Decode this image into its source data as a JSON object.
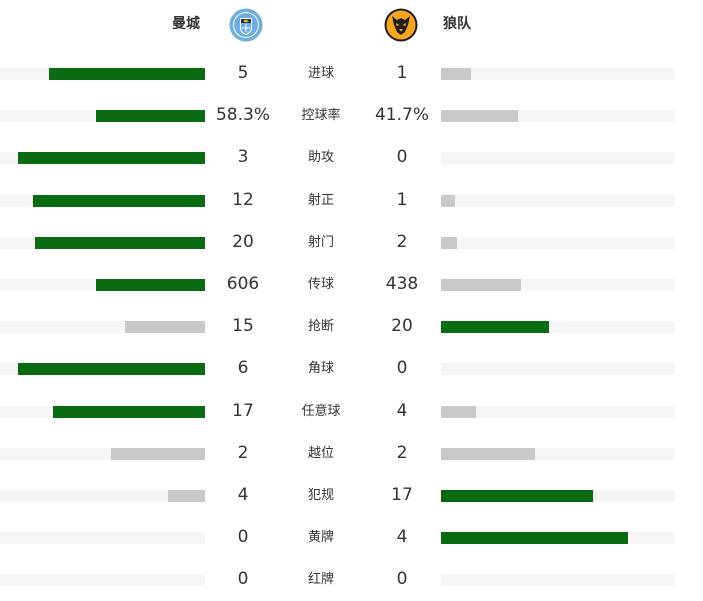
{
  "home_team": {
    "name": "曼城",
    "logo": "manchester-city-crest",
    "color": "#6caee0"
  },
  "away_team": {
    "name": "狼队",
    "logo": "wolves-crest",
    "color": "#f5a623"
  },
  "colors": {
    "leader": "#0b6b13",
    "trailer": "#c8c8c8",
    "track": "#f5f5f5"
  },
  "stats": [
    {
      "label": "进球",
      "home": "5",
      "away": "1",
      "home_share": 0.76,
      "away_share": 0.13,
      "leader": "home"
    },
    {
      "label": "控球率",
      "home": "58.3%",
      "away": "41.7%",
      "home_share": 0.53,
      "away_share": 0.33,
      "leader": "home"
    },
    {
      "label": "助攻",
      "home": "3",
      "away": "0",
      "home_share": 0.91,
      "away_share": 0.0,
      "leader": "home"
    },
    {
      "label": "射正",
      "home": "12",
      "away": "1",
      "home_share": 0.84,
      "away_share": 0.06,
      "leader": "home"
    },
    {
      "label": "射门",
      "home": "20",
      "away": "2",
      "home_share": 0.83,
      "away_share": 0.07,
      "leader": "home"
    },
    {
      "label": "传球",
      "home": "606",
      "away": "438",
      "home_share": 0.53,
      "away_share": 0.34,
      "leader": "home"
    },
    {
      "label": "抢断",
      "home": "15",
      "away": "20",
      "home_share": 0.39,
      "away_share": 0.46,
      "leader": "away"
    },
    {
      "label": "角球",
      "home": "6",
      "away": "0",
      "home_share": 0.91,
      "away_share": 0.0,
      "leader": "home"
    },
    {
      "label": "任意球",
      "home": "17",
      "away": "4",
      "home_share": 0.74,
      "away_share": 0.15,
      "leader": "home"
    },
    {
      "label": "越位",
      "home": "2",
      "away": "2",
      "home_share": 0.46,
      "away_share": 0.4,
      "leader": "none"
    },
    {
      "label": "犯规",
      "home": "4",
      "away": "17",
      "home_share": 0.18,
      "away_share": 0.65,
      "leader": "away"
    },
    {
      "label": "黄牌",
      "home": "0",
      "away": "4",
      "home_share": 0.0,
      "away_share": 0.8,
      "leader": "away"
    },
    {
      "label": "红牌",
      "home": "0",
      "away": "0",
      "home_share": 0.0,
      "away_share": 0.0,
      "leader": "none"
    }
  ]
}
